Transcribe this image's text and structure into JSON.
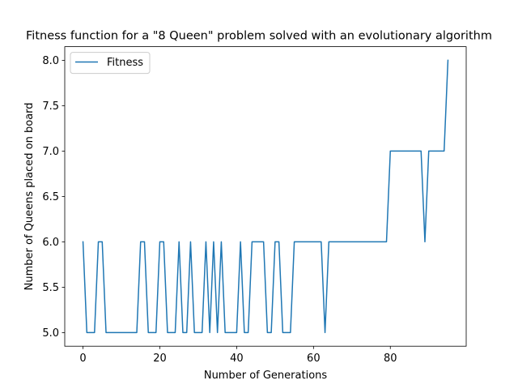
{
  "chart_data": {
    "type": "line",
    "title": "Fitness function for a \"8 Queen\" problem solved with an evolutionary algorithm",
    "xlabel": "Number of Generations",
    "ylabel": "Number of Queens placed on board",
    "xlim": [
      -4.75,
      99.75
    ],
    "ylim": [
      4.85,
      8.15
    ],
    "xticks": [
      0,
      20,
      40,
      60,
      80
    ],
    "xtick_labels": [
      "0",
      "20",
      "40",
      "60",
      "80"
    ],
    "yticks": [
      5.0,
      5.5,
      6.0,
      6.5,
      7.0,
      7.5,
      8.0
    ],
    "ytick_labels": [
      "5.0",
      "5.5",
      "6.0",
      "6.5",
      "7.0",
      "7.5",
      "8.0"
    ],
    "grid": false,
    "legend_position": "upper-left",
    "series": [
      {
        "name": "Fitness",
        "color": "#1f77b4",
        "x": [
          0,
          1,
          2,
          3,
          4,
          5,
          6,
          7,
          8,
          9,
          10,
          11,
          12,
          13,
          14,
          15,
          16,
          17,
          18,
          19,
          20,
          21,
          22,
          23,
          24,
          25,
          26,
          27,
          28,
          29,
          30,
          31,
          32,
          33,
          34,
          35,
          36,
          37,
          38,
          39,
          40,
          41,
          42,
          43,
          44,
          45,
          46,
          47,
          48,
          49,
          50,
          51,
          52,
          53,
          54,
          55,
          56,
          57,
          58,
          59,
          60,
          61,
          62,
          63,
          64,
          65,
          66,
          67,
          68,
          69,
          70,
          71,
          72,
          73,
          74,
          75,
          76,
          77,
          78,
          79,
          80,
          81,
          82,
          83,
          84,
          85,
          86,
          87,
          88,
          89,
          90,
          91,
          92,
          93,
          94,
          95
        ],
        "values": [
          6,
          5,
          5,
          5,
          6,
          6,
          5,
          5,
          5,
          5,
          5,
          5,
          5,
          5,
          5,
          6,
          6,
          5,
          5,
          5,
          6,
          6,
          5,
          5,
          5,
          6,
          5,
          5,
          6,
          5,
          5,
          5,
          6,
          5,
          6,
          5,
          6,
          5,
          5,
          5,
          5,
          6,
          5,
          5,
          6,
          6,
          6,
          6,
          5,
          5,
          6,
          6,
          5,
          5,
          5,
          6,
          6,
          6,
          6,
          6,
          6,
          6,
          6,
          5,
          6,
          6,
          6,
          6,
          6,
          6,
          6,
          6,
          6,
          6,
          6,
          6,
          6,
          6,
          6,
          6,
          7,
          7,
          7,
          7,
          7,
          7,
          7,
          7,
          7,
          6,
          7,
          7,
          7,
          7,
          7,
          8
        ]
      }
    ]
  }
}
